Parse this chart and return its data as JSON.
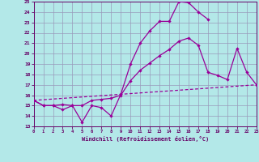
{
  "xlabel": "Windchill (Refroidissement éolien,°C)",
  "bg_color": "#b3e8e8",
  "grid_color": "#9999bb",
  "line_color": "#990099",
  "text_color": "#660066",
  "xlim_min": 0,
  "xlim_max": 23,
  "ylim_min": 13,
  "ylim_max": 25,
  "xticks": [
    0,
    1,
    2,
    3,
    4,
    5,
    6,
    7,
    8,
    9,
    10,
    11,
    12,
    13,
    14,
    15,
    16,
    17,
    18,
    19,
    20,
    21,
    22,
    23
  ],
  "yticks": [
    13,
    14,
    15,
    16,
    17,
    18,
    19,
    20,
    21,
    22,
    23,
    24,
    25
  ],
  "line1_x": [
    0,
    1,
    2,
    3,
    4,
    5,
    6,
    7,
    8,
    9,
    10,
    11,
    12,
    13,
    14,
    15,
    16,
    17,
    18
  ],
  "line1_y": [
    15.5,
    15.0,
    15.0,
    14.6,
    15.0,
    13.4,
    15.0,
    14.8,
    14.0,
    16.1,
    19.0,
    21.0,
    22.2,
    23.1,
    23.1,
    25.0,
    24.9,
    24.0,
    23.3
  ],
  "line2_x": [
    0,
    1,
    2,
    3,
    4,
    5,
    6,
    7,
    8,
    9,
    10,
    11,
    12,
    13,
    14,
    15,
    16,
    17,
    18,
    19,
    20,
    21,
    22,
    23
  ],
  "line2_y": [
    15.5,
    15.0,
    15.0,
    15.1,
    15.0,
    15.0,
    15.5,
    15.6,
    15.7,
    16.0,
    17.4,
    18.4,
    19.1,
    19.8,
    20.4,
    21.2,
    21.5,
    20.8,
    18.2,
    17.9,
    17.5,
    20.5,
    18.2,
    17.0
  ],
  "line3_x": [
    0,
    23
  ],
  "line3_y": [
    15.5,
    17.0
  ]
}
